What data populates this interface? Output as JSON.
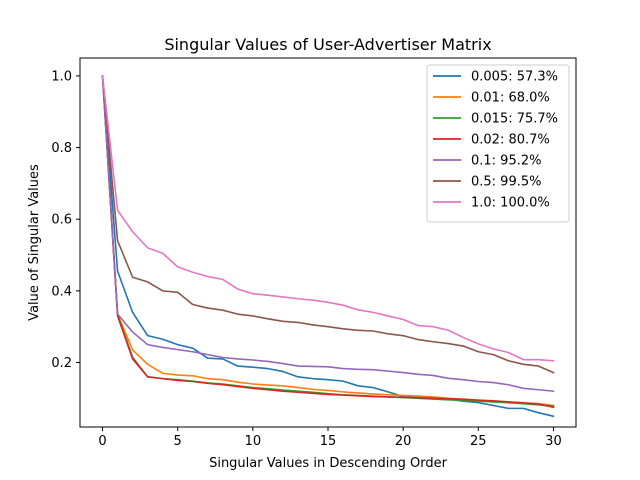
{
  "chart_data": {
    "type": "line",
    "title": "Singular Values of User-Advertiser Matrix",
    "xlabel": "Singular Values in Descending Order",
    "ylabel": "Value of Singular Values",
    "xlim": [
      -1.5,
      31.5
    ],
    "ylim": [
      0.02,
      1.05
    ],
    "xticks": [
      0,
      5,
      10,
      15,
      20,
      25,
      30
    ],
    "xtick_labels": [
      "0",
      "5",
      "10",
      "15",
      "20",
      "25",
      "30"
    ],
    "yticks": [
      0.2,
      0.4,
      0.6,
      0.8,
      1.0
    ],
    "ytick_labels": [
      "0.2",
      "0.4",
      "0.6",
      "0.8",
      "1.0"
    ],
    "grid": false,
    "legend_position": "top-right",
    "x": [
      0,
      1,
      2,
      3,
      4,
      5,
      6,
      7,
      8,
      9,
      10,
      11,
      12,
      13,
      14,
      15,
      16,
      17,
      18,
      19,
      20,
      21,
      22,
      23,
      24,
      25,
      26,
      27,
      28,
      29,
      30
    ],
    "series": [
      {
        "name": "0.005: 57.3%",
        "color": "#1f77b4",
        "values": [
          1.0,
          0.455,
          0.34,
          0.275,
          0.265,
          0.25,
          0.24,
          0.212,
          0.21,
          0.19,
          0.187,
          0.183,
          0.175,
          0.16,
          0.155,
          0.152,
          0.148,
          0.135,
          0.13,
          0.118,
          0.105,
          0.104,
          0.102,
          0.098,
          0.092,
          0.088,
          0.08,
          0.072,
          0.072,
          0.06,
          0.05
        ]
      },
      {
        "name": "0.01: 68.0%",
        "color": "#ff7f0e",
        "values": [
          1.0,
          0.335,
          0.235,
          0.195,
          0.17,
          0.165,
          0.163,
          0.155,
          0.152,
          0.145,
          0.14,
          0.137,
          0.135,
          0.13,
          0.125,
          0.122,
          0.118,
          0.115,
          0.112,
          0.11,
          0.108,
          0.106,
          0.104,
          0.1,
          0.098,
          0.095,
          0.092,
          0.09,
          0.088,
          0.085,
          0.08
        ]
      },
      {
        "name": "0.015: 75.7%",
        "color": "#2ca02c",
        "values": [
          1.0,
          0.333,
          0.215,
          0.16,
          0.155,
          0.152,
          0.148,
          0.143,
          0.14,
          0.135,
          0.13,
          0.127,
          0.123,
          0.12,
          0.117,
          0.113,
          0.11,
          0.108,
          0.106,
          0.104,
          0.102,
          0.1,
          0.098,
          0.096,
          0.094,
          0.092,
          0.09,
          0.088,
          0.085,
          0.082,
          0.078
        ]
      },
      {
        "name": "0.02: 80.7%",
        "color": "#d62728",
        "values": [
          1.0,
          0.33,
          0.21,
          0.16,
          0.155,
          0.15,
          0.147,
          0.142,
          0.138,
          0.133,
          0.128,
          0.124,
          0.12,
          0.117,
          0.114,
          0.111,
          0.109,
          0.107,
          0.105,
          0.104,
          0.103,
          0.102,
          0.1,
          0.099,
          0.097,
          0.095,
          0.093,
          0.09,
          0.087,
          0.084,
          0.075
        ]
      },
      {
        "name": "0.1: 95.2%",
        "color": "#9467bd",
        "values": [
          1.0,
          0.335,
          0.285,
          0.25,
          0.242,
          0.236,
          0.23,
          0.222,
          0.214,
          0.21,
          0.207,
          0.203,
          0.197,
          0.19,
          0.189,
          0.188,
          0.183,
          0.181,
          0.18,
          0.176,
          0.172,
          0.167,
          0.164,
          0.156,
          0.152,
          0.147,
          0.144,
          0.138,
          0.128,
          0.124,
          0.12
        ]
      },
      {
        "name": "0.5: 99.5%",
        "color": "#8c564b",
        "values": [
          1.0,
          0.54,
          0.438,
          0.425,
          0.4,
          0.396,
          0.362,
          0.352,
          0.346,
          0.335,
          0.33,
          0.322,
          0.315,
          0.312,
          0.305,
          0.3,
          0.294,
          0.29,
          0.288,
          0.28,
          0.275,
          0.264,
          0.258,
          0.253,
          0.246,
          0.23,
          0.222,
          0.205,
          0.195,
          0.19,
          0.172
        ]
      },
      {
        "name": "1.0: 100.0%",
        "color": "#e377c2",
        "values": [
          1.0,
          0.625,
          0.565,
          0.52,
          0.505,
          0.467,
          0.452,
          0.44,
          0.432,
          0.405,
          0.392,
          0.388,
          0.383,
          0.378,
          0.374,
          0.368,
          0.36,
          0.347,
          0.34,
          0.33,
          0.32,
          0.303,
          0.3,
          0.29,
          0.27,
          0.252,
          0.238,
          0.228,
          0.208,
          0.208,
          0.205
        ]
      }
    ]
  }
}
